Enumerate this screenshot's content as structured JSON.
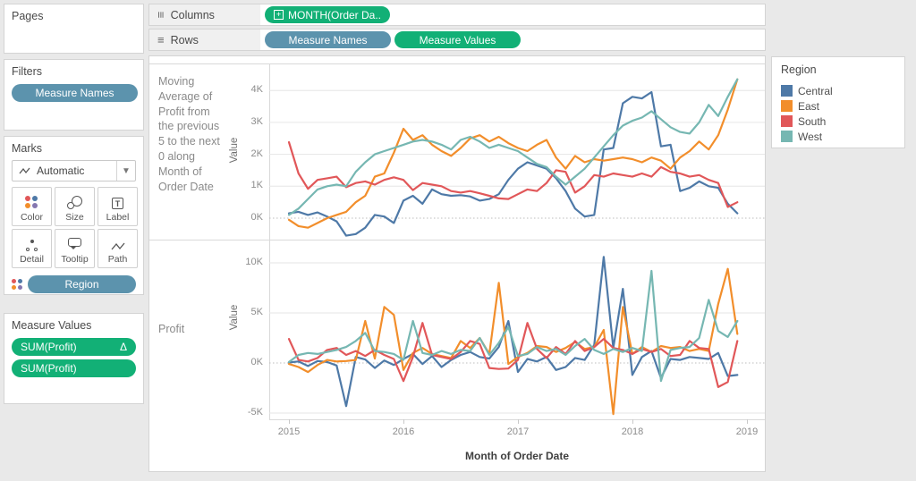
{
  "sidebar": {
    "pages": {
      "title": "Pages"
    },
    "filters": {
      "title": "Filters",
      "pill": "Measure Names"
    },
    "marks": {
      "title": "Marks",
      "mark_type_label": "Automatic",
      "buttons": [
        {
          "label": "Color"
        },
        {
          "label": "Size"
        },
        {
          "label": "Label"
        },
        {
          "label": "Detail"
        },
        {
          "label": "Tooltip"
        },
        {
          "label": "Path"
        }
      ],
      "encoding_pill": "Region"
    },
    "measure_values": {
      "title": "Measure Values",
      "pills": [
        {
          "text": "SUM(Profit)",
          "badge": "Δ"
        },
        {
          "text": "SUM(Profit)",
          "badge": ""
        }
      ]
    }
  },
  "shelves": {
    "columns": {
      "label": "Columns",
      "pill": "MONTH(Order Da.."
    },
    "rows": {
      "label": "Rows",
      "pills": [
        "Measure Names",
        "Measure Values"
      ]
    }
  },
  "legend": {
    "title": "Region",
    "items": [
      {
        "label": "Central",
        "color": "#4e79a7"
      },
      {
        "label": "East",
        "color": "#f28e2b"
      },
      {
        "label": "South",
        "color": "#e15759"
      },
      {
        "label": "West",
        "color": "#76b7b2"
      }
    ]
  },
  "colors": {
    "pill_green": "#12b076",
    "pill_blue": "#5c93ad"
  },
  "x_axis": {
    "ticks": [
      "2015",
      "2016",
      "2017",
      "2018",
      "2019"
    ],
    "title": "Month of Order Date"
  },
  "chart_data": [
    {
      "type": "line",
      "row_label": "Moving Average of Profit from the previous 5 to the next 0 along Month of Order Date",
      "ylabel": "Value",
      "units": "thousands",
      "x_start": "2015-01",
      "x_interval": "month",
      "ylim": [
        -0.8,
        4.9
      ],
      "yticks": [
        {
          "v": 0,
          "label": "0K"
        },
        {
          "v": 1,
          "label": "1K"
        },
        {
          "v": 2,
          "label": "2K"
        },
        {
          "v": 3,
          "label": "3K"
        },
        {
          "v": 4,
          "label": "4K"
        }
      ],
      "series": [
        {
          "name": "Central",
          "color": "#4e79a7",
          "values": [
            0.15,
            0.2,
            0.1,
            0.18,
            0.05,
            -0.1,
            -0.55,
            -0.5,
            -0.3,
            0.1,
            0.05,
            -0.15,
            0.55,
            0.7,
            0.45,
            0.9,
            0.75,
            0.7,
            0.72,
            0.68,
            0.55,
            0.6,
            0.75,
            1.2,
            1.55,
            1.75,
            1.65,
            1.55,
            1.25,
            0.85,
            0.3,
            0.05,
            0.1,
            2.15,
            2.2,
            3.6,
            3.8,
            3.75,
            3.95,
            2.25,
            2.3,
            0.85,
            0.95,
            1.15,
            1.0,
            0.95,
            0.45,
            0.15
          ]
        },
        {
          "name": "East",
          "color": "#f28e2b",
          "values": [
            -0.05,
            -0.25,
            -0.3,
            -0.15,
            0.0,
            0.1,
            0.2,
            0.5,
            0.7,
            1.3,
            1.4,
            2.05,
            2.8,
            2.45,
            2.6,
            2.3,
            2.1,
            1.95,
            2.2,
            2.5,
            2.6,
            2.4,
            2.55,
            2.35,
            2.2,
            2.1,
            2.3,
            2.45,
            1.9,
            1.55,
            1.95,
            1.75,
            1.85,
            1.8,
            1.85,
            1.9,
            1.85,
            1.75,
            1.9,
            1.8,
            1.55,
            1.9,
            2.1,
            2.4,
            2.15,
            2.6,
            3.4,
            4.35
          ]
        },
        {
          "name": "South",
          "color": "#e15759",
          "values": [
            2.38,
            1.4,
            0.92,
            1.2,
            1.25,
            1.3,
            0.97,
            1.1,
            1.15,
            1.05,
            1.2,
            1.28,
            1.2,
            0.88,
            1.1,
            1.05,
            1.0,
            0.85,
            0.8,
            0.85,
            0.78,
            0.7,
            0.62,
            0.6,
            0.75,
            0.9,
            0.85,
            1.1,
            1.5,
            1.45,
            0.8,
            1.0,
            1.35,
            1.3,
            1.4,
            1.35,
            1.3,
            1.4,
            1.3,
            1.6,
            1.45,
            1.4,
            1.3,
            1.35,
            1.2,
            1.1,
            0.35,
            0.5
          ]
        },
        {
          "name": "West",
          "color": "#76b7b2",
          "values": [
            0.1,
            0.3,
            0.6,
            0.9,
            1.0,
            1.05,
            1.0,
            1.45,
            1.75,
            2.0,
            2.1,
            2.2,
            2.3,
            2.4,
            2.45,
            2.4,
            2.3,
            2.15,
            2.45,
            2.55,
            2.4,
            2.2,
            2.3,
            2.2,
            2.1,
            1.9,
            1.7,
            1.6,
            1.3,
            1.05,
            1.3,
            1.55,
            1.9,
            2.25,
            2.6,
            2.9,
            3.05,
            3.15,
            3.35,
            3.1,
            2.85,
            2.7,
            2.65,
            3.0,
            3.55,
            3.2,
            3.8,
            4.35
          ]
        }
      ]
    },
    {
      "type": "line",
      "row_label": "Profit",
      "ylabel": "Value",
      "units": "thousands",
      "x_start": "2015-01",
      "x_interval": "month",
      "ylim": [
        -5.9,
        11.7
      ],
      "yticks": [
        {
          "v": -5,
          "label": "-5K"
        },
        {
          "v": 0,
          "label": "0K"
        },
        {
          "v": 5,
          "label": "5K"
        },
        {
          "v": 10,
          "label": "10K"
        }
      ],
      "series": [
        {
          "name": "Central",
          "color": "#4e79a7",
          "values": [
            0.05,
            0.15,
            -0.3,
            0.2,
            0.1,
            -0.25,
            -4.3,
            0.6,
            0.35,
            -0.5,
            0.25,
            -0.2,
            0.4,
            0.9,
            -0.1,
            0.7,
            -0.4,
            0.3,
            0.8,
            1.1,
            0.6,
            0.45,
            1.6,
            4.2,
            -0.9,
            0.4,
            0.15,
            0.6,
            -0.7,
            -0.4,
            0.5,
            0.3,
            1.8,
            10.6,
            1.5,
            7.4,
            -1.2,
            0.6,
            1.2,
            -1.5,
            0.4,
            0.3,
            0.6,
            0.5,
            0.4,
            1.0,
            -1.3,
            -1.2
          ]
        },
        {
          "name": "East",
          "color": "#f28e2b",
          "values": [
            -0.1,
            -0.4,
            -0.9,
            -0.2,
            0.3,
            0.15,
            0.2,
            0.3,
            4.2,
            0.45,
            5.6,
            4.8,
            -0.7,
            1.0,
            1.5,
            0.9,
            0.7,
            0.5,
            2.2,
            1.5,
            2.5,
            0.9,
            8.0,
            -0.1,
            0.6,
            1.0,
            1.7,
            1.6,
            1.1,
            1.5,
            2.1,
            1.4,
            1.6,
            3.3,
            -5.1,
            5.6,
            0.9,
            1.6,
            1.1,
            1.7,
            1.5,
            1.6,
            1.2,
            1.4,
            1.2,
            5.9,
            9.4,
            2.9
          ]
        },
        {
          "name": "South",
          "color": "#e15759",
          "values": [
            2.4,
            0.3,
            0.15,
            0.5,
            1.3,
            1.5,
            0.8,
            1.2,
            0.7,
            1.3,
            0.8,
            0.4,
            -1.8,
            0.6,
            4.0,
            0.8,
            0.6,
            0.4,
            1.1,
            2.2,
            1.9,
            -0.5,
            -0.6,
            -0.55,
            0.3,
            4.0,
            1.4,
            0.5,
            1.6,
            0.9,
            2.2,
            1.2,
            1.6,
            2.4,
            1.5,
            1.3,
            0.9,
            1.4,
            1.1,
            1.4,
            0.7,
            0.8,
            2.2,
            1.5,
            1.4,
            -2.4,
            -1.9,
            2.2
          ]
        },
        {
          "name": "West",
          "color": "#76b7b2",
          "values": [
            0.1,
            0.8,
            1.0,
            0.9,
            1.1,
            1.3,
            1.6,
            2.2,
            3.0,
            1.2,
            1.1,
            0.9,
            0.3,
            4.2,
            1.0,
            0.8,
            1.2,
            0.9,
            1.3,
            1.2,
            2.5,
            0.8,
            2.0,
            3.6,
            0.7,
            0.9,
            1.6,
            1.2,
            1.4,
            0.8,
            1.7,
            2.4,
            1.3,
            0.9,
            1.4,
            1.1,
            1.5,
            1.2,
            9.2,
            -1.8,
            1.3,
            1.5,
            1.6,
            2.5,
            6.3,
            3.2,
            2.6,
            4.2
          ]
        }
      ]
    }
  ]
}
